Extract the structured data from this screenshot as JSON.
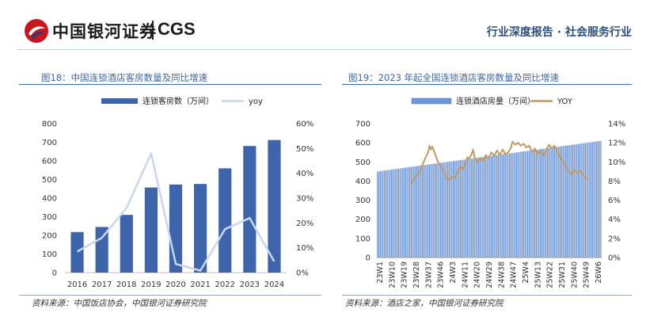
{
  "header": {
    "logo_cn": "中国银河证券",
    "logo_en": "CGS",
    "report_type": "行业深度报告 · 社会服务行业"
  },
  "chart1": {
    "title": "图18：中国连锁酒店客房数量及同比增速",
    "source": "资料来源：中国饭店协会，中国银河证券研究院",
    "chart_data": {
      "type": "bar",
      "categories": [
        "2016",
        "2017",
        "2018",
        "2019",
        "2020",
        "2021",
        "2022",
        "2023",
        "2024"
      ],
      "series": [
        {
          "name": "连锁客房数（万间）",
          "type": "bar",
          "axis": "left",
          "values": [
            218,
            245,
            310,
            457,
            473,
            476,
            560,
            680,
            712
          ]
        },
        {
          "name": "yoy",
          "type": "line",
          "axis": "right",
          "values": [
            0.085,
            0.14,
            0.26,
            0.48,
            0.035,
            0.008,
            0.175,
            0.22,
            0.045
          ]
        }
      ],
      "ylim": [
        0,
        800
      ],
      "yticks": [
        0,
        100,
        200,
        300,
        400,
        500,
        600,
        700,
        800
      ],
      "y2lim": [
        0,
        0.6
      ],
      "y2ticks": [
        "0%",
        "10%",
        "20%",
        "30%",
        "40%",
        "50%",
        "60%"
      ],
      "legend_position": "top",
      "grid": false,
      "colors": {
        "bar": "#3e64ac",
        "line": "#c8d7ee"
      }
    }
  },
  "chart2": {
    "title": "图19：2023 年起全国连锁酒店客房数量及同比增速",
    "source": "资料来源：酒店之家，中国银河证券研究院",
    "chart_data": {
      "type": "bar",
      "x_labels": [
        "23W1",
        "23W10",
        "23W19",
        "23W28",
        "23W37",
        "23W46",
        "24W3",
        "24W11",
        "24W20",
        "24W29",
        "24W38",
        "24W47",
        "25W4",
        "25W13",
        "25W22",
        "25W31",
        "25W40",
        "25W49",
        "26W6"
      ],
      "series": [
        {
          "name": "连锁酒店房量（万间）",
          "type": "bar",
          "axis": "left",
          "start": 450,
          "end": 610,
          "count": 160
        },
        {
          "name": "YOY",
          "type": "line",
          "axis": "right",
          "points": [
            [
              24,
              0.078
            ],
            [
              26,
              0.082
            ],
            [
              28,
              0.086
            ],
            [
              30,
              0.09
            ],
            [
              32,
              0.097
            ],
            [
              34,
              0.104
            ],
            [
              36,
              0.11
            ],
            [
              37,
              0.117
            ],
            [
              38,
              0.113
            ],
            [
              39,
              0.116
            ],
            [
              41,
              0.108
            ],
            [
              43,
              0.1
            ],
            [
              45,
              0.096
            ],
            [
              47,
              0.09
            ],
            [
              49,
              0.083
            ],
            [
              51,
              0.081
            ],
            [
              53,
              0.085
            ],
            [
              55,
              0.083
            ],
            [
              57,
              0.09
            ],
            [
              59,
              0.095
            ],
            [
              61,
              0.092
            ],
            [
              63,
              0.1
            ],
            [
              64,
              0.105
            ],
            [
              65,
              0.103
            ],
            [
              67,
              0.108
            ],
            [
              68,
              0.113
            ],
            [
              69,
              0.105
            ],
            [
              71,
              0.1
            ],
            [
              73,
              0.104
            ],
            [
              75,
              0.101
            ],
            [
              77,
              0.107
            ],
            [
              79,
              0.104
            ],
            [
              81,
              0.11
            ],
            [
              83,
              0.106
            ],
            [
              85,
              0.112
            ],
            [
              87,
              0.107
            ],
            [
              89,
              0.113
            ],
            [
              91,
              0.108
            ],
            [
              93,
              0.11
            ],
            [
              95,
              0.115
            ],
            [
              96,
              0.121
            ],
            [
              98,
              0.118
            ],
            [
              100,
              0.12
            ],
            [
              102,
              0.117
            ],
            [
              104,
              0.119
            ],
            [
              106,
              0.115
            ],
            [
              108,
              0.117
            ],
            [
              110,
              0.11
            ],
            [
              112,
              0.114
            ],
            [
              114,
              0.108
            ],
            [
              116,
              0.111
            ],
            [
              118,
              0.106
            ],
            [
              120,
              0.112
            ],
            [
              122,
              0.118
            ],
            [
              124,
              0.114
            ],
            [
              126,
              0.117
            ],
            [
              128,
              0.11
            ],
            [
              130,
              0.105
            ],
            [
              132,
              0.1
            ],
            [
              134,
              0.095
            ],
            [
              136,
              0.09
            ],
            [
              138,
              0.087
            ],
            [
              140,
              0.092
            ],
            [
              142,
              0.088
            ],
            [
              144,
              0.091
            ],
            [
              146,
              0.087
            ],
            [
              148,
              0.083
            ],
            [
              150,
              0.082
            ]
          ]
        }
      ],
      "ylim": [
        0,
        700
      ],
      "yticks": [
        0,
        100,
        200,
        300,
        400,
        500,
        600,
        700
      ],
      "y2lim": [
        0,
        0.14
      ],
      "y2ticks": [
        "0%",
        "2%",
        "4%",
        "6%",
        "8%",
        "10%",
        "12%",
        "14%"
      ],
      "legend_position": "top",
      "grid": false,
      "colors": {
        "bar": "#6f95d6",
        "bar_edge": "#4a76c4",
        "line": "#bf9a62"
      }
    }
  }
}
